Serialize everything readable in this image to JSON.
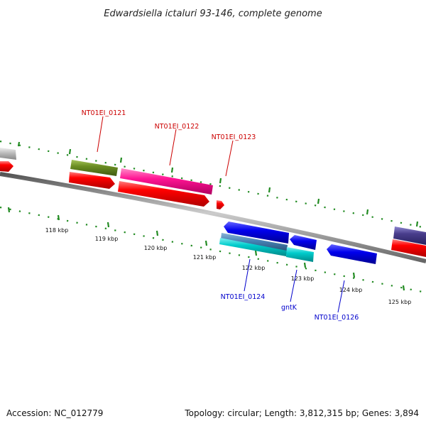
{
  "title": "Edwardsiella ictaluri 93-146, complete genome",
  "footer": {
    "accession": "Accession: NC_012779",
    "summary": "Topology: circular; Length: 3,812,315 bp; Genes: 3,894"
  },
  "scale_ticks": [
    "118 kbp",
    "119 kbp",
    "120 kbp",
    "121 kbp",
    "122 kbp",
    "123 kbp",
    "124 kbp",
    "125 kbp"
  ],
  "gene_labels": {
    "g0121": "NT01EI_0121",
    "g0122": "NT01EI_0122",
    "g0123": "NT01EI_0123",
    "g0124": "NT01EI_0124",
    "gntK": "gntK",
    "g0126": "NT01EI_0126"
  },
  "colors": {
    "forward_label": "#cc0000",
    "reverse_label": "#0000cc",
    "cds_red": "#ff0000",
    "olive": "#6b8e23",
    "magenta": "#ff1493",
    "blue": "#0000ee",
    "steel": "#4682b4",
    "cyan": "#00cccc",
    "slate": "#483d8b",
    "grey": "#bbbbbb",
    "tick_green": "#228b22",
    "backbone": "#888888"
  }
}
